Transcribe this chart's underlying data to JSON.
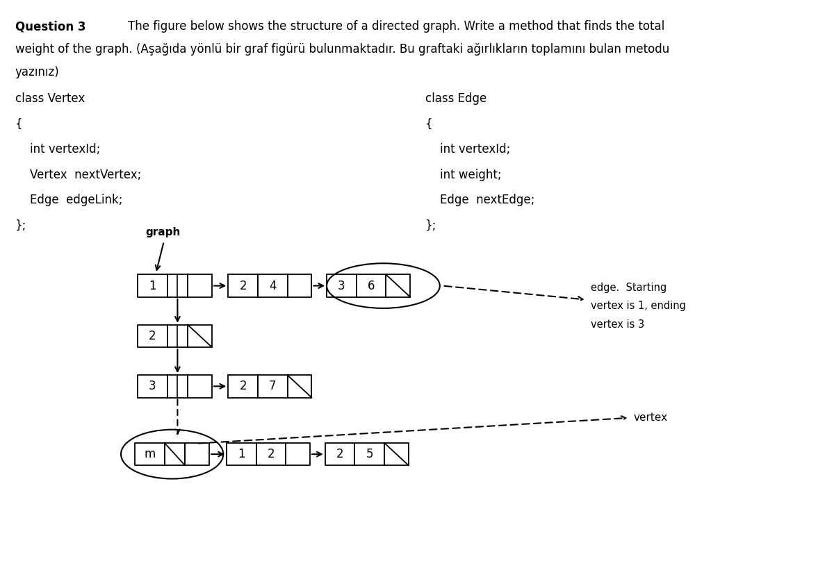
{
  "bg_color": "#ffffff",
  "text_color": "#000000",
  "title_bold": "Question 3",
  "title_rest": "        The figure below shows the structure of a directed graph. Write a method that finds the total",
  "line2": "weight of the graph. (Âşağıda yönlü bir graf figürü bulunmaktadır. Bu graftaki ağırlıkların toplamını bulan metodu",
  "line3": "yazınız)",
  "class_vertex": [
    "class Vertex",
    "{",
    "    int vertexId;",
    "    Vertex  nextVertex;",
    "    Edge  edgeLink;",
    "};"
  ],
  "class_edge": [
    "class Edge",
    "{",
    "    int vertexId;",
    "    int weight;",
    "    Edge  nextEdge;",
    "};"
  ],
  "cw": 0.45,
  "ch": 0.42,
  "r1x": 0.62,
  "r1y": 4.05
}
